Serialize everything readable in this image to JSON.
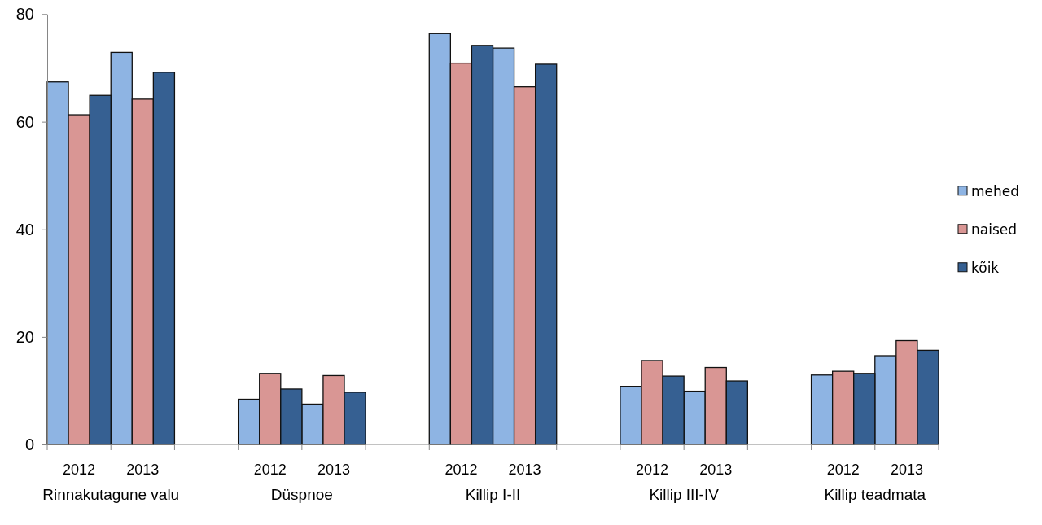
{
  "chart_data": {
    "type": "bar",
    "categories": [
      "2012",
      "2013",
      null,
      "2012",
      "2013",
      null,
      "2012",
      "2013",
      null,
      "2012",
      "2013",
      null,
      "2012",
      "2013"
    ],
    "series": [
      {
        "name": "mehed",
        "color": "#8eb4e3",
        "values": [
          67.4,
          72.9,
          null,
          8.4,
          7.5,
          null,
          76.4,
          73.7,
          null,
          10.8,
          9.9,
          null,
          12.9,
          16.5
        ]
      },
      {
        "name": "naised",
        "color": "#d99694",
        "values": [
          61.3,
          64.2,
          null,
          13.2,
          12.8,
          null,
          70.9,
          66.5,
          null,
          15.6,
          14.3,
          null,
          13.6,
          19.3
        ]
      },
      {
        "name": "kõik",
        "color": "#366092",
        "values": [
          64.9,
          69.2,
          null,
          10.3,
          9.7,
          null,
          74.2,
          70.7,
          null,
          12.7,
          11.8,
          null,
          13.2,
          17.5
        ]
      }
    ],
    "annotations": [
      "Rinnakutagune valu",
      "Düspnoe",
      "Killip I-II",
      "Killip III-IV",
      "Killip teadmata"
    ],
    "ylim": [
      0,
      80
    ],
    "yticks": [
      0,
      20,
      40,
      60,
      80
    ],
    "grid": false,
    "legend": "right"
  }
}
